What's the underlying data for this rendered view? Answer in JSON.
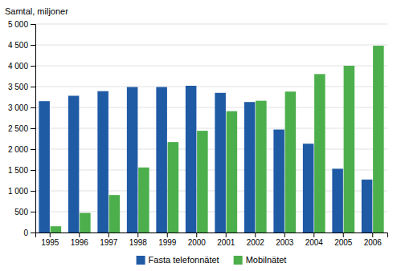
{
  "chart_data": {
    "type": "bar",
    "ylabel": "Samtal, miljoner",
    "categories": [
      "1995",
      "1996",
      "1997",
      "1998",
      "1999",
      "2000",
      "2001",
      "2002",
      "2003",
      "2004",
      "2005",
      "2006"
    ],
    "series": [
      {
        "name": "Fasta telefonnätet",
        "color": "#1f5aa5",
        "values": [
          3150,
          3280,
          3390,
          3490,
          3490,
          3520,
          3350,
          3130,
          2470,
          2130,
          1530,
          1270
        ]
      },
      {
        "name": "Mobilnätet",
        "color": "#4caf4c",
        "values": [
          150,
          470,
          900,
          1560,
          2170,
          2440,
          2910,
          3160,
          3380,
          3800,
          4000,
          4480
        ]
      }
    ],
    "ylim": [
      0,
      5000
    ],
    "yticks": [
      0,
      500,
      {
        "value": 1000,
        "label": "1 000"
      },
      {
        "value": 1500,
        "label": "1 500"
      },
      {
        "value": 2000,
        "label": "2 000"
      },
      {
        "value": 2500,
        "label": "2 500"
      },
      {
        "value": 3000,
        "label": "3 000"
      },
      {
        "value": 3500,
        "label": "3 500"
      },
      {
        "value": 4000,
        "label": "4 000"
      },
      {
        "value": 4500,
        "label": "4 500"
      },
      {
        "value": 5000,
        "label": "5 000"
      }
    ],
    "grid": true,
    "legend": "bottom"
  }
}
